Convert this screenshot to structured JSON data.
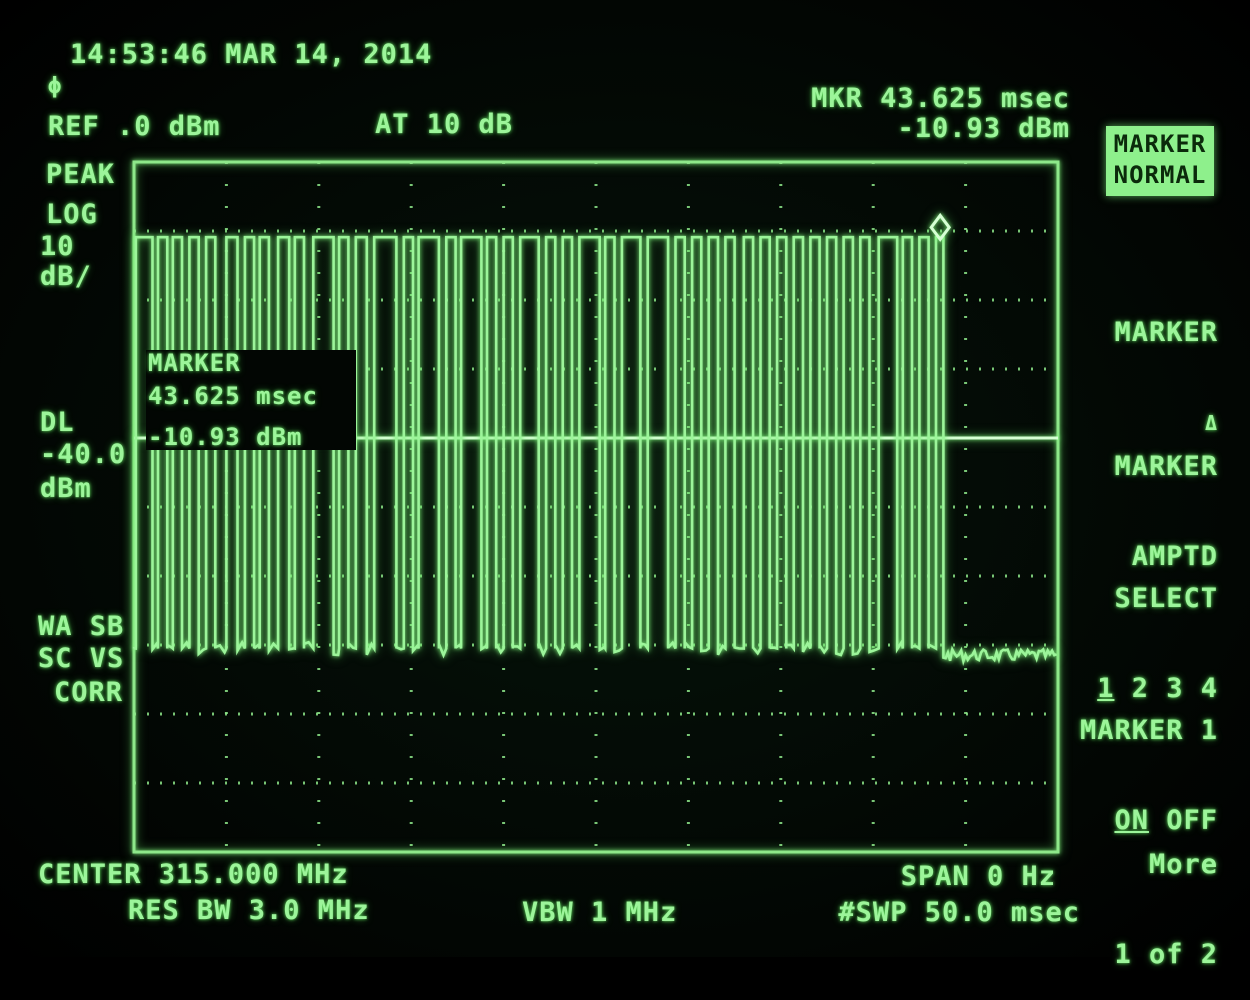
{
  "header": {
    "timestamp": "14:53:46 MAR 14, 2014",
    "ref_level": "REF .0 dBm",
    "attenuation": "AT 10 dB",
    "marker_label": "MKR 43.625 msec",
    "marker_value": "-10.93 dBm"
  },
  "left_panel": {
    "detector": "PEAK",
    "scale_line1": "LOG",
    "scale_line2": "10",
    "scale_line3": "dB/",
    "dl_label": "DL",
    "dl_value": "-40.0",
    "dl_unit": "dBm",
    "status_line1": "WA SB",
    "status_line2": "SC VS",
    "status_line3": "CORR"
  },
  "marker_readout": {
    "title": "MARKER",
    "time": "43.625 msec",
    "amplitude": "-10.93 dBm"
  },
  "softkeys": {
    "marker_normal_line1": "MARKER",
    "marker_normal_line2": "NORMAL",
    "marker_delta_line1": "MARKER",
    "marker_delta_line2": "Δ",
    "marker_amptd_line1": "MARKER",
    "marker_amptd_line2": "AMPTD",
    "select_line1": "SELECT",
    "select_opt1": "1",
    "select_opts_rest": "2 3 4",
    "marker1_line1": "MARKER 1",
    "marker1_on": "ON",
    "marker1_off": "OFF",
    "more_line1": "More",
    "more_line2": "1 of 2"
  },
  "footer": {
    "center": "CENTER 315.000 MHz",
    "span": "SPAN 0 Hz",
    "res_bw": "RES BW 3.0 MHz",
    "vbw": "VBW 1 MHz",
    "sweep": "#SWP 50.0 msec"
  },
  "colors": {
    "trace": "#9cf59a",
    "graticule": "#8ee88a",
    "background": "#020603"
  },
  "chart_data": {
    "type": "line",
    "xlim": [
      0,
      50.0
    ],
    "ylim": [
      -100,
      0
    ],
    "x_unit": "msec",
    "y_unit": "dBm",
    "display_line_dbm": -40.0,
    "marker": {
      "x": 43.625,
      "y": -10.93
    },
    "pulse_train": {
      "high_level_dbm": -10.9,
      "low_level_dbm": -70.5,
      "noise_floor_dbm": -71.5,
      "pulses": [
        [
          0.1,
          1.0
        ],
        [
          1.3,
          1.8
        ],
        [
          2.1,
          2.6
        ],
        [
          3.0,
          3.5
        ],
        [
          3.9,
          4.4
        ],
        [
          5.0,
          5.6
        ],
        [
          6.0,
          6.5
        ],
        [
          6.8,
          7.3
        ],
        [
          7.8,
          8.4
        ],
        [
          8.7,
          9.2
        ],
        [
          9.7,
          10.8
        ],
        [
          11.1,
          11.6
        ],
        [
          12.0,
          12.6
        ],
        [
          13.0,
          14.2
        ],
        [
          14.6,
          15.1
        ],
        [
          15.4,
          16.5
        ],
        [
          16.9,
          17.4
        ],
        [
          17.7,
          18.8
        ],
        [
          19.1,
          19.6
        ],
        [
          20.0,
          20.5
        ],
        [
          20.9,
          21.9
        ],
        [
          22.3,
          22.8
        ],
        [
          23.2,
          23.7
        ],
        [
          24.1,
          25.2
        ],
        [
          25.5,
          26.0
        ],
        [
          26.4,
          27.4
        ],
        [
          27.8,
          28.9
        ],
        [
          29.3,
          29.8
        ],
        [
          30.2,
          30.7
        ],
        [
          31.1,
          31.6
        ],
        [
          32.0,
          32.5
        ],
        [
          33.0,
          33.5
        ],
        [
          33.9,
          34.4
        ],
        [
          34.8,
          35.3
        ],
        [
          35.7,
          36.2
        ],
        [
          36.6,
          37.1
        ],
        [
          37.5,
          38.0
        ],
        [
          38.4,
          38.9
        ],
        [
          39.3,
          39.8
        ],
        [
          40.3,
          41.3
        ],
        [
          41.6,
          42.1
        ],
        [
          42.5,
          43.0
        ],
        [
          43.4,
          43.8
        ]
      ]
    }
  }
}
